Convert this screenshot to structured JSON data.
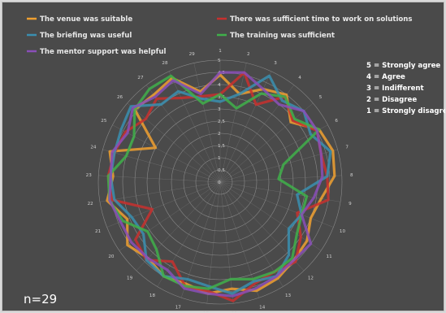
{
  "chart_data": {
    "type": "radar",
    "title": "",
    "categories": [
      "1",
      "2",
      "3",
      "4",
      "5",
      "6",
      "7",
      "8",
      "9",
      "10",
      "11",
      "12",
      "13",
      "14",
      "15",
      "16",
      "17",
      "18",
      "19",
      "20",
      "21",
      "22",
      "23",
      "24",
      "25",
      "26",
      "27",
      "28",
      "29"
    ],
    "r_ticks": [
      "0",
      "0,5",
      "1",
      "1,5",
      "2",
      "2,5",
      "3",
      "3,5",
      "4",
      "4,5",
      "5"
    ],
    "r_range": [
      0,
      5
    ],
    "series": [
      {
        "name": "The venue was suitable",
        "color": "#f0a030",
        "values": [
          4.4,
          3.7,
          4.2,
          4.5,
          3.8,
          4.6,
          4.8,
          4.7,
          4.2,
          4.0,
          4.3,
          4.4,
          4.6,
          4.7,
          4.4,
          4.6,
          4.4,
          4.5,
          4.3,
          4.6,
          4.1,
          4.7,
          4.4,
          4.7,
          3.0,
          4.6,
          4.5,
          4.7,
          3.8
        ]
      },
      {
        "name": "There was sufficient time to work on solutions",
        "color": "#c8302e",
        "values": [
          3.6,
          4.6,
          3.5,
          4.4,
          3.9,
          4.5,
          4.3,
          4.4,
          4.5,
          3.4,
          4.0,
          4.5,
          4.3,
          4.4,
          4.9,
          4.5,
          4.5,
          3.8,
          4.4,
          4.2,
          3.0,
          4.5,
          4.6,
          4.5,
          4.4,
          4.0,
          4.3,
          3.8,
          3.6
        ]
      },
      {
        "name": "The briefing was useful",
        "color": "#3a8fb0",
        "values": [
          3.3,
          3.7,
          4.8,
          4.2,
          4.5,
          4.2,
          4.7,
          4.4,
          3.2,
          3.6,
          3.4,
          4.1,
          4.5,
          4.3,
          4.6,
          4.3,
          4.2,
          4.5,
          4.4,
          3.8,
          3.9,
          4.4,
          4.5,
          4.5,
          4.6,
          4.8,
          4.0,
          4.1,
          3.5
        ]
      },
      {
        "name": "The training was sufficient",
        "color": "#3fb04a",
        "values": [
          3.6,
          3.1,
          4.0,
          4.4,
          4.0,
          4.6,
          2.7,
          2.4,
          3.6,
          3.6,
          3.8,
          4.3,
          4.3,
          4.2,
          4.0,
          4.4,
          4.5,
          4.5,
          3.8,
          3.6,
          4.3,
          4.6,
          4.6,
          4.0,
          4.0,
          4.6,
          4.8,
          4.8,
          3.3
        ]
      },
      {
        "name": "The mentor support was helpful",
        "color": "#8a4fb8",
        "values": [
          4.5,
          4.6,
          4.2,
          4.0,
          4.5,
          4.5,
          4.3,
          4.2,
          3.9,
          3.6,
          4.5,
          4.4,
          4.5,
          4.6,
          4.7,
          4.6,
          4.6,
          4.2,
          4.3,
          4.4,
          4.4,
          4.6,
          4.5,
          4.6,
          4.3,
          4.7,
          4.4,
          4.6,
          3.7
        ]
      }
    ]
  },
  "scale_legend": [
    "5 = Strongly agree",
    "4 = Agree",
    "3 = Indifferent",
    "2 = Disagree",
    "1 = Strongly disagree"
  ],
  "sample_size": "n=29",
  "colors": {
    "background": "#4a4a4a",
    "grid": "#8a8a8a"
  }
}
